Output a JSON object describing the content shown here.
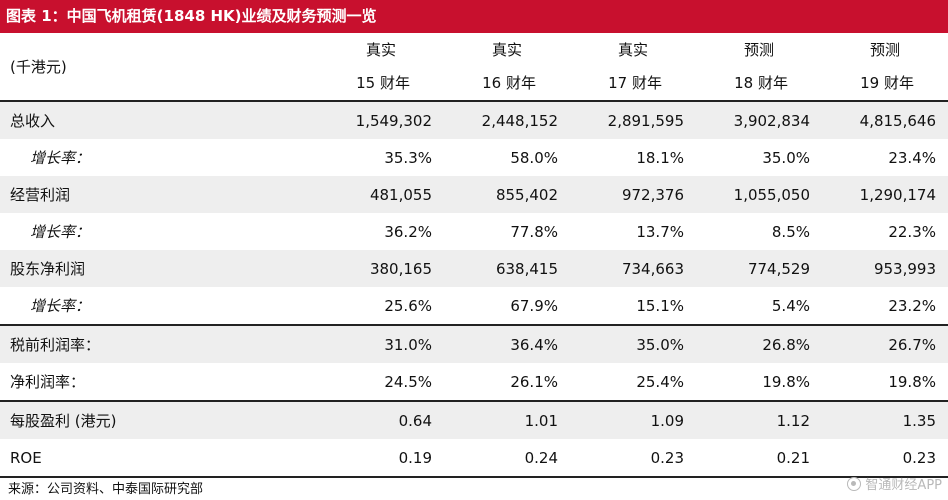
{
  "title": "图表 1：中国飞机租赁(1848 HK)业绩及财务预测一览",
  "header": {
    "unit": "(千港元)",
    "kinds": [
      "真实",
      "真实",
      "真实",
      "预测",
      "预测"
    ],
    "years": [
      "15 财年",
      "16 财年",
      "17 财年",
      "18 财年",
      "19 财年"
    ]
  },
  "rows": [
    {
      "label": "总收入",
      "values": [
        "1,549,302",
        "2,448,152",
        "2,891,595",
        "3,902,834",
        "4,815,646"
      ]
    },
    {
      "label": "增长率：",
      "values": [
        "35.3%",
        "58.0%",
        "18.1%",
        "35.0%",
        "23.4%"
      ]
    },
    {
      "label": "经营利润",
      "values": [
        "481,055",
        "855,402",
        "972,376",
        "1,055,050",
        "1,290,174"
      ]
    },
    {
      "label": "增长率：",
      "values": [
        "36.2%",
        "77.8%",
        "13.7%",
        "8.5%",
        "22.3%"
      ]
    },
    {
      "label": "股东净利润",
      "values": [
        "380,165",
        "638,415",
        "734,663",
        "774,529",
        "953,993"
      ]
    },
    {
      "label": "增长率：",
      "values": [
        "25.6%",
        "67.9%",
        "15.1%",
        "5.4%",
        "23.2%"
      ]
    },
    {
      "label": "税前利润率：",
      "values": [
        "31.0%",
        "36.4%",
        "35.0%",
        "26.8%",
        "26.7%"
      ]
    },
    {
      "label": "净利润率：",
      "values": [
        "24.5%",
        "26.1%",
        "25.4%",
        "19.8%",
        "19.8%"
      ]
    },
    {
      "label": "每股盈利 (港元)",
      "values": [
        "0.64",
        "1.01",
        "1.09",
        "1.12",
        "1.35"
      ]
    },
    {
      "label": "ROE",
      "values": [
        "0.19",
        "0.24",
        "0.23",
        "0.21",
        "0.23"
      ]
    }
  ],
  "source": "来源：公司资料、中泰国际研究部",
  "watermark": "智通财经APP"
}
